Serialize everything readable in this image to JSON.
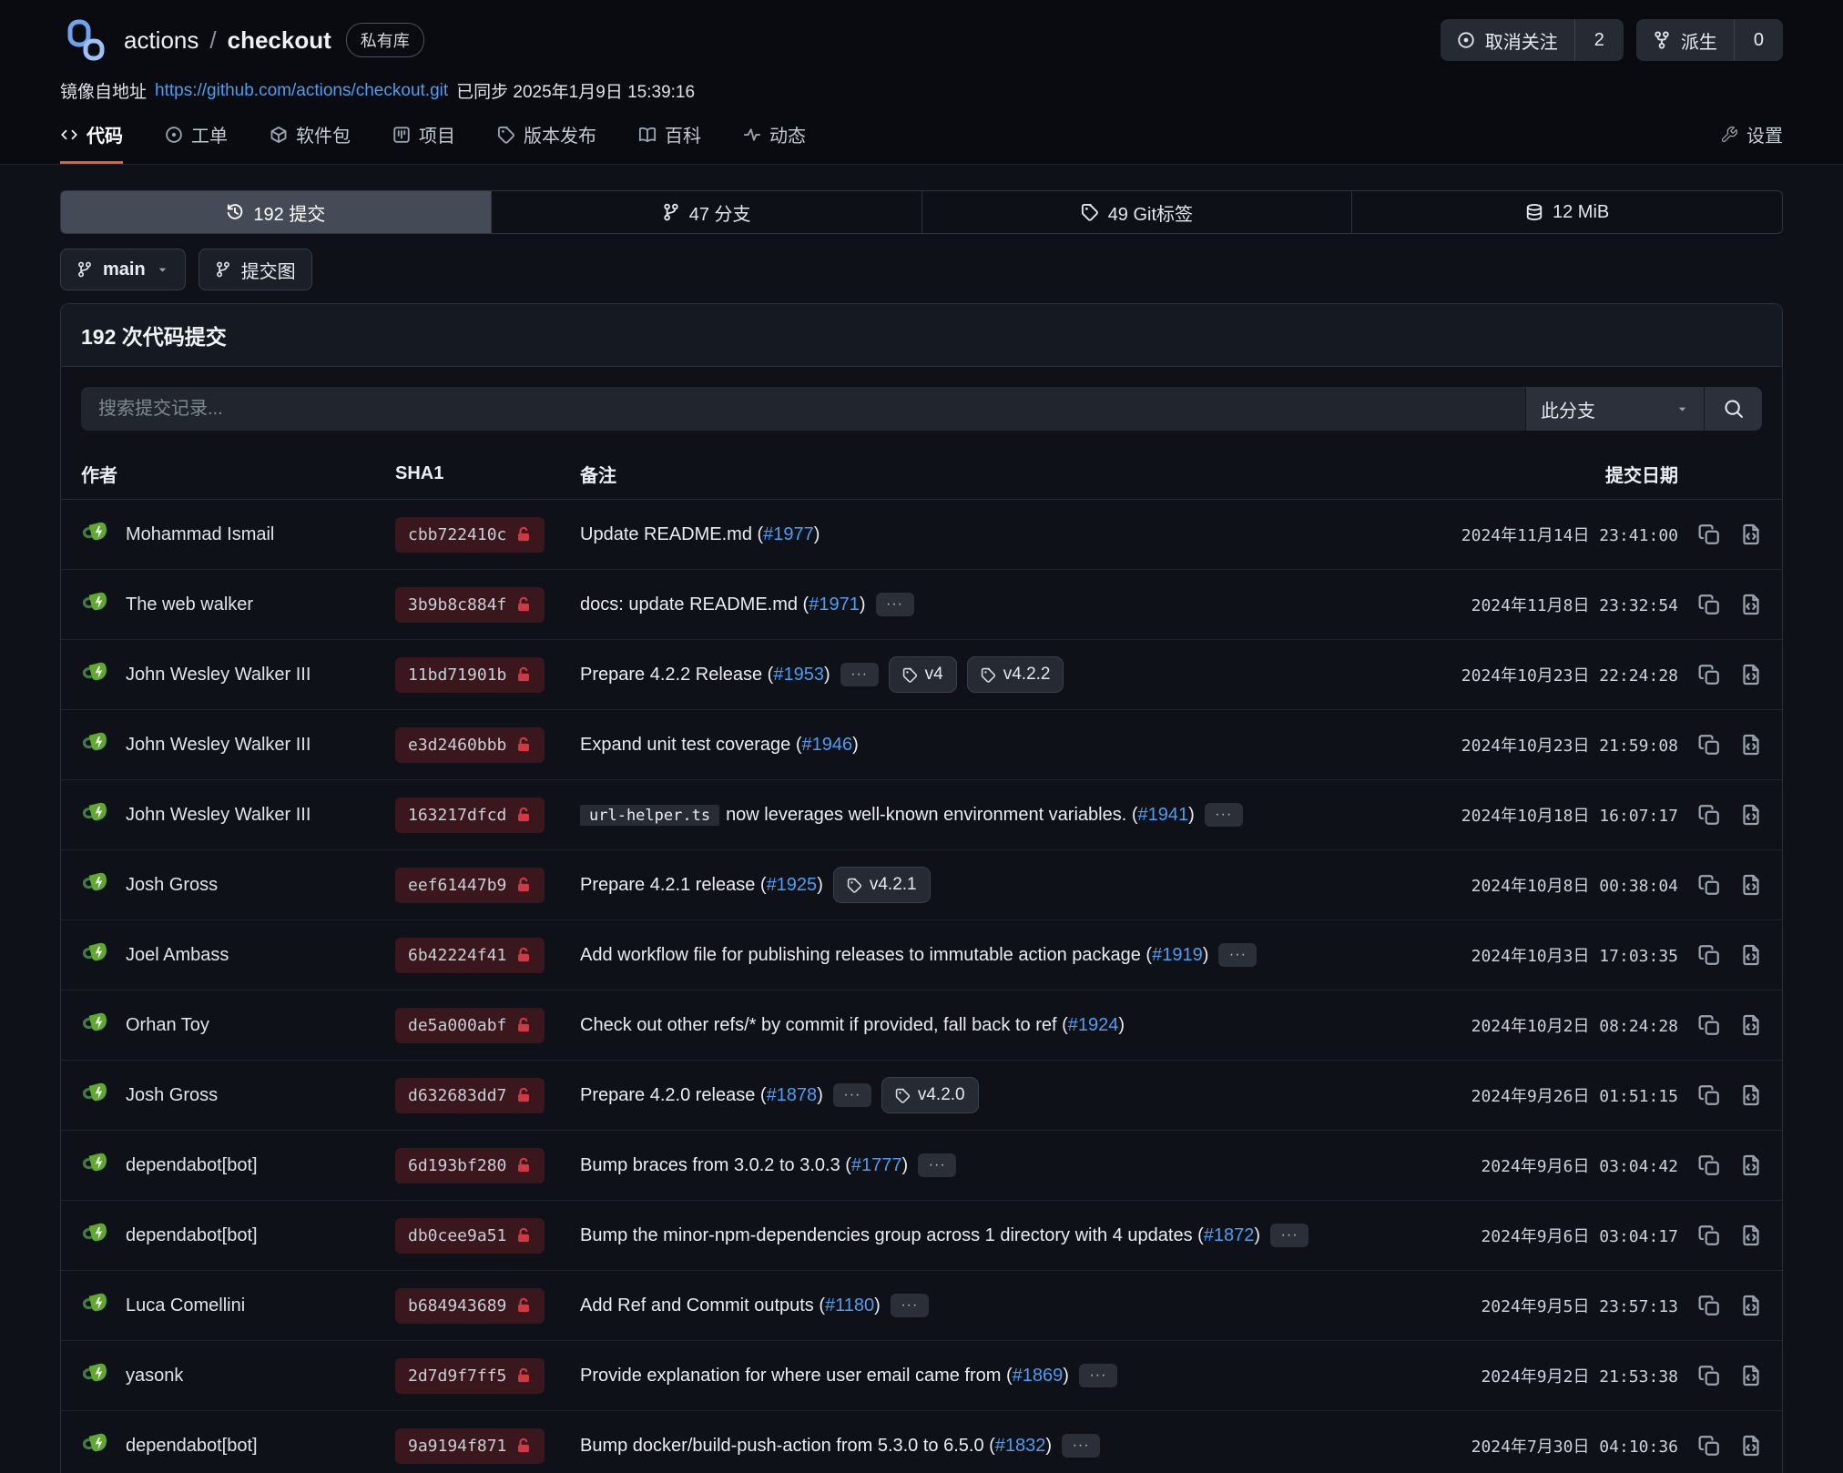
{
  "colors": {
    "accent_orange": "#e0603f",
    "link_blue": "#4f9cf0",
    "lock_red": "#cf3943",
    "avatar_green": "#60a830",
    "sha_badge_bg": "#3a171c"
  },
  "header": {
    "repo_owner": "actions",
    "separator": "/",
    "repo_name": "checkout",
    "visibility_badge": "私有库",
    "unwatch": {
      "label": "取消关注",
      "count": "2",
      "icon": "eye"
    },
    "fork": {
      "label": "派生",
      "count": "0",
      "icon": "fork"
    },
    "mirror": {
      "prefix": "镜像自地址",
      "url": "https://github.com/actions/checkout.git",
      "synced": "已同步 2025年1月9日 15:39:16"
    }
  },
  "nav": {
    "tabs": [
      {
        "label": "代码",
        "icon": "code",
        "active": true
      },
      {
        "label": "工单",
        "icon": "issue",
        "active": false
      },
      {
        "label": "软件包",
        "icon": "package",
        "active": false
      },
      {
        "label": "项目",
        "icon": "project",
        "active": false
      },
      {
        "label": "版本发布",
        "icon": "tag",
        "active": false
      },
      {
        "label": "百科",
        "icon": "book",
        "active": false
      },
      {
        "label": "动态",
        "icon": "activity",
        "active": false
      }
    ],
    "settings_label": "设置",
    "settings_icon": "wrench"
  },
  "stats": {
    "items": [
      {
        "label": "192 提交",
        "icon": "history",
        "active": true
      },
      {
        "label": "47 分支",
        "icon": "branch",
        "active": false
      },
      {
        "label": "49 Git标签",
        "icon": "tag",
        "active": false
      },
      {
        "label": "12 MiB",
        "icon": "database",
        "active": false
      }
    ]
  },
  "toolbar": {
    "branch_label": "main",
    "graph_label": "提交图"
  },
  "commits_panel": {
    "title": "192 次代码提交",
    "search_placeholder": "搜索提交记录...",
    "branch_filter_label": "此分支",
    "more_label": "···",
    "columns": {
      "author": "作者",
      "sha": "SHA1",
      "message": "备注",
      "date": "提交日期"
    },
    "rows": [
      {
        "author": "Mohammad Ismail",
        "sha": "cbb722410c",
        "text": "Update README.md",
        "issue": "#1977",
        "more": false,
        "tags": [],
        "date": "2024年11月14日 23:41:00"
      },
      {
        "author": "The web walker",
        "sha": "3b9b8c884f",
        "text": "docs: update README.md",
        "issue": "#1971",
        "more": true,
        "tags": [],
        "date": "2024年11月8日 23:32:54"
      },
      {
        "author": "John Wesley Walker III",
        "sha": "11bd71901b",
        "text": "Prepare 4.2.2 Release",
        "issue": "#1953",
        "more": true,
        "tags": [
          "v4",
          "v4.2.2"
        ],
        "date": "2024年10月23日 22:24:28"
      },
      {
        "author": "John Wesley Walker III",
        "sha": "e3d2460bbb",
        "text": "Expand unit test coverage",
        "issue": "#1946",
        "more": false,
        "tags": [],
        "date": "2024年10月23日 21:59:08"
      },
      {
        "author": "John Wesley Walker III",
        "sha": "163217dfcd",
        "code": "url-helper.ts",
        "text": "now leverages well-known environment variables.",
        "issue": "#1941",
        "more": true,
        "tags": [],
        "date": "2024年10月18日 16:07:17"
      },
      {
        "author": "Josh Gross",
        "sha": "eef61447b9",
        "text": "Prepare 4.2.1 release",
        "issue": "#1925",
        "more": false,
        "tags": [
          "v4.2.1"
        ],
        "date": "2024年10月8日 00:38:04"
      },
      {
        "author": "Joel Ambass",
        "sha": "6b42224f41",
        "text": "Add workflow file for publishing releases to immutable action package",
        "issue": "#1919",
        "more": true,
        "tags": [],
        "date": "2024年10月3日 17:03:35"
      },
      {
        "author": "Orhan Toy",
        "sha": "de5a000abf",
        "text": "Check out other refs/* by commit if provided, fall back to ref",
        "issue": "#1924",
        "more": false,
        "tags": [],
        "date": "2024年10月2日 08:24:28"
      },
      {
        "author": "Josh Gross",
        "sha": "d632683dd7",
        "text": "Prepare 4.2.0 release",
        "issue": "#1878",
        "more": true,
        "tags": [
          "v4.2.0"
        ],
        "date": "2024年9月26日 01:51:15"
      },
      {
        "author": "dependabot[bot]",
        "sha": "6d193bf280",
        "text": "Bump braces from 3.0.2 to 3.0.3",
        "issue": "#1777",
        "more": true,
        "tags": [],
        "date": "2024年9月6日 03:04:42"
      },
      {
        "author": "dependabot[bot]",
        "sha": "db0cee9a51",
        "text": "Bump the minor-npm-dependencies group across 1 directory with 4 updates",
        "issue": "#1872",
        "more": true,
        "tags": [],
        "date": "2024年9月6日 03:04:17"
      },
      {
        "author": "Luca Comellini",
        "sha": "b684943689",
        "text": "Add Ref and Commit outputs",
        "issue": "#1180",
        "more": true,
        "tags": [],
        "date": "2024年9月5日 23:57:13"
      },
      {
        "author": "yasonk",
        "sha": "2d7d9f7ff5",
        "text": "Provide explanation for where user email came from",
        "issue": "#1869",
        "more": true,
        "tags": [],
        "date": "2024年9月2日 21:53:38"
      },
      {
        "author": "dependabot[bot]",
        "sha": "9a9194f871",
        "text": "Bump docker/build-push-action from 5.3.0 to 6.5.0",
        "issue": "#1832",
        "more": true,
        "tags": [],
        "date": "2024年7月30日 04:10:36"
      }
    ]
  }
}
